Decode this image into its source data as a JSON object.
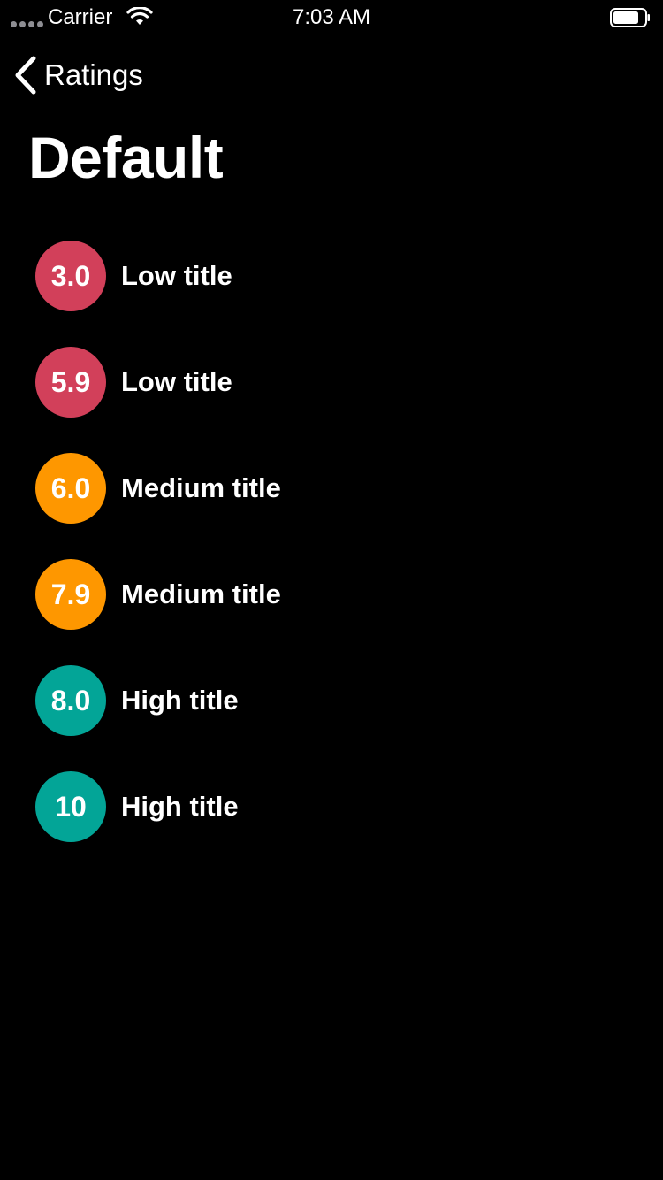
{
  "status_bar": {
    "carrier": "Carrier",
    "time": "7:03 AM",
    "signal_icon": "signal-dots-icon",
    "wifi_icon": "wifi-icon",
    "battery_icon": "battery-icon"
  },
  "nav": {
    "back_label": "Ratings",
    "back_icon": "chevron-left-icon"
  },
  "page": {
    "title": "Default"
  },
  "colors": {
    "low": "#d2405a",
    "medium": "#fe9700",
    "high": "#03a597",
    "background": "#000000"
  },
  "ratings": [
    {
      "value": "3.0",
      "title": "Low title",
      "level": "low"
    },
    {
      "value": "5.9",
      "title": "Low title",
      "level": "low"
    },
    {
      "value": "6.0",
      "title": "Medium title",
      "level": "medium"
    },
    {
      "value": "7.9",
      "title": "Medium title",
      "level": "medium"
    },
    {
      "value": "8.0",
      "title": "High title",
      "level": "high"
    },
    {
      "value": "10",
      "title": "High title",
      "level": "high"
    }
  ]
}
